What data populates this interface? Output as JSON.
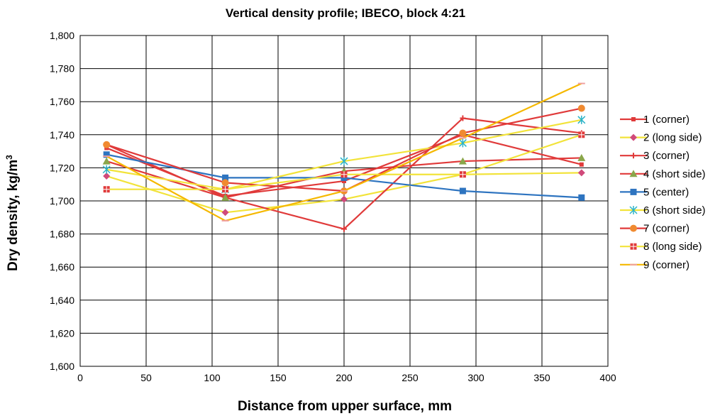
{
  "chart_data": {
    "type": "line",
    "title": "Vertical density profile; IBECO, block 4:21",
    "xlabel": "Distance from upper surface, mm",
    "ylabel": "Dry density, kg/m",
    "ylabel_sup": "3",
    "xlim": [
      0,
      400
    ],
    "ylim": [
      1600,
      1800
    ],
    "xticks": [
      0,
      50,
      100,
      150,
      200,
      250,
      300,
      350,
      400
    ],
    "xtick_labels": [
      "0",
      "50",
      "100",
      "150",
      "200",
      "250",
      "300",
      "350",
      "400"
    ],
    "yticks": [
      1600,
      1620,
      1640,
      1660,
      1680,
      1700,
      1720,
      1740,
      1760,
      1780,
      1800
    ],
    "ytick_labels": [
      "1,600",
      "1,620",
      "1,640",
      "1,660",
      "1,680",
      "1,700",
      "1,720",
      "1,740",
      "1,760",
      "1,780",
      "1,800"
    ],
    "grid": true,
    "legend_position": "right",
    "x": [
      20,
      110,
      200,
      290,
      380
    ],
    "series": [
      {
        "name": "1 (corner)",
        "color": "#e03a3a",
        "marker": "square-small",
        "values": [
          1732,
          1703,
          1712,
          1740,
          1722
        ]
      },
      {
        "name": "2 (long side)",
        "color": "#f2e33a",
        "marker": "diamond",
        "marker_color": "#d04a7a",
        "values": [
          1715,
          1693,
          1701,
          1716,
          1717
        ]
      },
      {
        "name": "3 (corner)",
        "color": "#e03a3a",
        "marker": "star",
        "values": [
          1734,
          1702,
          1683,
          1750,
          1741
        ]
      },
      {
        "name": "4 (short side)",
        "color": "#e03a3a",
        "marker": "triangle",
        "marker_color": "#8aa64a",
        "values": [
          1724,
          1702,
          1718,
          1724,
          1726
        ]
      },
      {
        "name": "5 (center)",
        "color": "#2e74c0",
        "marker": "square",
        "values": [
          1728,
          1714,
          1714,
          1706,
          1702
        ]
      },
      {
        "name": "6 (short side)",
        "color": "#f2e33a",
        "marker": "asterisk",
        "marker_color": "#2ab3c8",
        "values": [
          1719,
          1707,
          1724,
          1735,
          1749
        ]
      },
      {
        "name": "7 (corner)",
        "color": "#e03a3a",
        "marker": "circle",
        "marker_color": "#f08a30",
        "values": [
          1734,
          1711,
          1706,
          1741,
          1756
        ]
      },
      {
        "name": "8 (long side)",
        "color": "#f2e33a",
        "marker": "square-cross",
        "marker_color": "#e03a3a",
        "values": [
          1707,
          1707,
          1716,
          1716,
          1740
        ]
      },
      {
        "name": "9 (corner)",
        "color": "#f5b800",
        "marker": "dash",
        "marker_color": "#f0a0a0",
        "values": [
          1727,
          1688,
          1706,
          1738,
          1771
        ]
      }
    ]
  }
}
